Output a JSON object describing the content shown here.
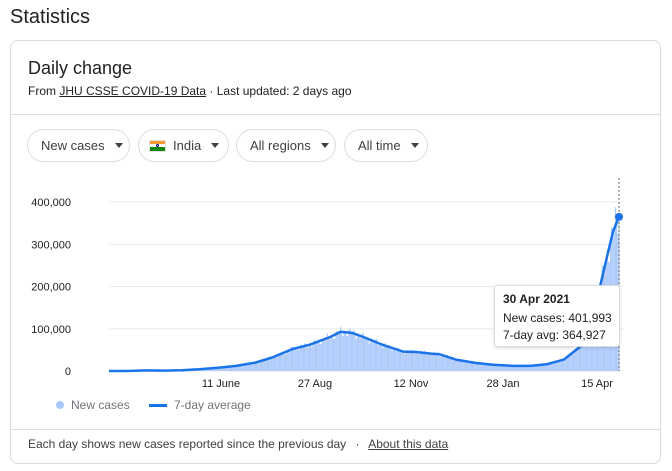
{
  "page_heading": "Statistics",
  "card": {
    "title": "Daily change",
    "source_prefix": "From",
    "source_link": "JHU CSSE COVID-19 Data",
    "updated": "· Last updated: 2 days ago"
  },
  "filters": [
    {
      "label": "New cases"
    },
    {
      "label": "India",
      "icon": "india-flag-icon"
    },
    {
      "label": "All regions"
    },
    {
      "label": "All time"
    }
  ],
  "chart_data": {
    "type": "bar+line",
    "series": [
      {
        "name": "New cases",
        "kind": "bar",
        "color": "#a8c7fa"
      },
      {
        "name": "7-day average",
        "kind": "line",
        "color": "#1a73e8"
      }
    ],
    "x": [
      "2020-03-01",
      "2020-03-15",
      "2020-04-01",
      "2020-04-15",
      "2020-05-01",
      "2020-05-15",
      "2020-06-01",
      "2020-06-15",
      "2020-07-01",
      "2020-07-15",
      "2020-08-01",
      "2020-08-15",
      "2020-09-01",
      "2020-09-10",
      "2020-09-20",
      "2020-10-01",
      "2020-10-15",
      "2020-11-01",
      "2020-11-12",
      "2020-11-25",
      "2020-12-01",
      "2020-12-15",
      "2021-01-01",
      "2021-01-15",
      "2021-02-01",
      "2021-02-15",
      "2021-03-01",
      "2021-03-15",
      "2021-04-01",
      "2021-04-10",
      "2021-04-15",
      "2021-04-20",
      "2021-04-25",
      "2021-04-30"
    ],
    "values_7day": [
      0,
      100,
      1500,
      1000,
      2000,
      4000,
      8000,
      12000,
      20000,
      32000,
      52000,
      62000,
      80000,
      93000,
      90000,
      78000,
      62000,
      46000,
      45000,
      41000,
      40000,
      27000,
      19000,
      15000,
      12000,
      12000,
      16000,
      27000,
      65000,
      140000,
      210000,
      270000,
      330000,
      364927
    ],
    "x_ticks": [
      "11 June",
      "27 Aug",
      "12 Nov",
      "28 Jan",
      "15 Apr"
    ],
    "y_ticks": [
      "0",
      "100,000",
      "200,000",
      "300,000",
      "400,000"
    ],
    "ylim": [
      0,
      400000
    ],
    "grid": true,
    "legend": "bottom-left"
  },
  "tooltip": {
    "date": "30 Apr 2021",
    "new_cases": "New cases: 401,993",
    "avg": "7-day avg: 364,927"
  },
  "legend": {
    "cases": "New cases",
    "avg": "7-day average"
  },
  "footer": {
    "text": "Each day shows new cases reported since the previous day",
    "sep": "·",
    "link": "About this data"
  },
  "colors": {
    "bar": "#a8c7fa",
    "line": "#1a73e8",
    "grid": "#e8eaed"
  }
}
